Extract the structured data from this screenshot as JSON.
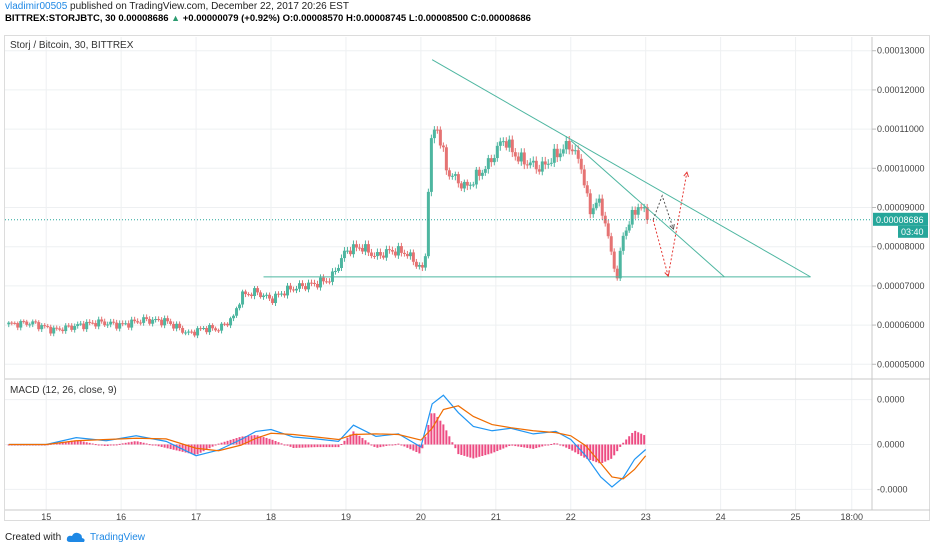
{
  "header": {
    "username": "vladimir00505",
    "published": "published on TradingView.com, December 22, 2017 20:26 EST",
    "symbol": "BITTREX:STORJBTC, 30",
    "price": "0.00008686",
    "change": "+0.00000079 (+0.92%)",
    "o_label": "O:",
    "o": "0.00008570",
    "h_label": "H:",
    "h": "0.00008745",
    "l_label": "L:",
    "l": "0.00008500",
    "c_label": "C:",
    "c": "0.00008686"
  },
  "footer": {
    "created": "Created with",
    "brand": "TradingView"
  },
  "chart_data": [
    {
      "type": "candlestick",
      "title": "Storj / Bitcoin, 30, BITTREX",
      "y_ticks": [
        "0.00013000",
        "0.00012000",
        "0.00011000",
        "0.00010000",
        "0.00009000",
        "0.00008000",
        "0.00007000",
        "0.00006000",
        "0.00005000"
      ],
      "y_tick_values": [
        0.00013,
        0.00012,
        0.00011,
        0.0001,
        9e-05,
        8e-05,
        7e-05,
        6e-05,
        5e-05
      ],
      "ylim": [
        4.65e-05,
        0.0001335
      ],
      "x_ticks": [
        "15",
        "16",
        "17",
        "18",
        "19",
        "20",
        "21",
        "22",
        "23",
        "24",
        "25",
        "18:00"
      ],
      "x_tick_values": [
        15,
        16,
        17,
        18,
        19,
        20,
        21,
        22,
        23,
        24,
        25,
        25.75
      ],
      "xlim": [
        14.45,
        26.02
      ],
      "last_price": "0.00008686",
      "last_price_value": 8.686e-05,
      "countdown": "03:40",
      "colors": {
        "up": "#4db6a0",
        "down": "#e57373",
        "trend": "#4db6a0",
        "price_line": "#26a69a",
        "arrow_down": "#e53935",
        "arrow_up": "#e53935"
      },
      "close_path": [
        [
          14.5,
          6.02e-05
        ],
        [
          14.8,
          6.06e-05
        ],
        [
          15.1,
          5.87e-05
        ],
        [
          15.4,
          5.98e-05
        ],
        [
          15.7,
          6.07e-05
        ],
        [
          16.0,
          6e-05
        ],
        [
          16.3,
          6.13e-05
        ],
        [
          16.6,
          6.1e-05
        ],
        [
          16.9,
          5.78e-05
        ],
        [
          17.1,
          5.92e-05
        ],
        [
          17.3,
          5.9e-05
        ],
        [
          17.5,
          6.2e-05
        ],
        [
          17.6,
          6.75e-05
        ],
        [
          17.8,
          6.85e-05
        ],
        [
          18.0,
          6.65e-05
        ],
        [
          18.2,
          6.88e-05
        ],
        [
          18.4,
          6.99e-05
        ],
        [
          18.6,
          7.06e-05
        ],
        [
          18.8,
          7.18e-05
        ],
        [
          19.0,
          7.9e-05
        ],
        [
          19.2,
          8e-05
        ],
        [
          19.4,
          7.75e-05
        ],
        [
          19.6,
          7.9e-05
        ],
        [
          19.8,
          7.85e-05
        ],
        [
          20.0,
          7.45e-05
        ],
        [
          20.05,
          7.35e-05
        ],
        [
          20.12,
          0.000104
        ],
        [
          20.2,
          0.000112
        ],
        [
          20.35,
          9.92e-05
        ],
        [
          20.6,
          9.5e-05
        ],
        [
          20.9,
          0.000101
        ],
        [
          21.1,
          0.0001075
        ],
        [
          21.3,
          0.0001025
        ],
        [
          21.6,
          0.0001
        ],
        [
          21.9,
          0.000105
        ],
        [
          22.0,
          0.000106
        ],
        [
          22.15,
          0.0001
        ],
        [
          22.25,
          8.85e-05
        ],
        [
          22.35,
          9.2e-05
        ],
        [
          22.45,
          8.75e-05
        ],
        [
          22.55,
          7.7e-05
        ],
        [
          22.62,
          7.25e-05
        ],
        [
          22.7,
          8.3e-05
        ],
        [
          22.8,
          8.7e-05
        ],
        [
          22.9,
          9.05e-05
        ],
        [
          23.0,
          8.85e-05
        ],
        [
          23.05,
          8.69e-05
        ]
      ],
      "trend_lines": [
        {
          "from": [
            20.15,
            0.0001277
          ],
          "to": [
            25.2,
            7.23e-05
          ]
        },
        {
          "from": [
            22.0,
            0.0001071
          ],
          "to": [
            24.05,
            7.23e-05
          ]
        },
        {
          "from": [
            17.9,
            7.23e-05
          ],
          "to": [
            25.2,
            7.23e-05
          ]
        }
      ],
      "projection_arrows": [
        {
          "kind": "down",
          "points": [
            [
              23.1,
              8.68e-05
            ],
            [
              23.3,
              7.25e-05
            ]
          ]
        },
        {
          "kind": "up",
          "points": [
            [
              23.3,
              7.25e-05
            ],
            [
              23.55,
              9.9e-05
            ]
          ]
        },
        {
          "kind": "swing",
          "points": [
            [
              23.1,
              8.69e-05
            ],
            [
              23.22,
              9.3e-05
            ],
            [
              23.37,
              8.45e-05
            ]
          ]
        }
      ]
    },
    {
      "type": "line",
      "title": "MACD (12, 26, close, 9)",
      "y_ticks": [
        "0.0000",
        "0.0000",
        "-0.0000"
      ],
      "y_tick_values": [
        7.2e-06,
        0,
        -7.2e-06
      ],
      "ylim": [
        -1.05e-05,
        1.05e-05
      ],
      "colors": {
        "macd": "#2196f3",
        "signal": "#ef6c00",
        "hist": "#e91e63"
      },
      "series": [
        {
          "points": [
            [
              14.5,
              0.0
            ],
            [
              15.0,
              0.0
            ],
            [
              15.4,
              1.1e-06
            ],
            [
              15.8,
              6e-07
            ],
            [
              16.2,
              1.4e-06
            ],
            [
              16.6,
              5e-07
            ],
            [
              17.0,
              -1.8e-06
            ],
            [
              17.3,
              -9e-07
            ],
            [
              17.6,
              8e-07
            ],
            [
              17.8,
              2.1e-06
            ],
            [
              18.0,
              2.4e-06
            ],
            [
              18.3,
              1.2e-06
            ],
            [
              18.6,
              9e-07
            ],
            [
              18.9,
              5e-07
            ],
            [
              19.1,
              3.1e-06
            ],
            [
              19.4,
              1.3e-06
            ],
            [
              19.7,
              1.7e-06
            ],
            [
              20.0,
              -4e-07
            ],
            [
              20.15,
              6.5e-06
            ],
            [
              20.3,
              7.9e-06
            ],
            [
              20.5,
              5.1e-06
            ],
            [
              20.7,
              2.9e-06
            ],
            [
              20.95,
              2.2e-06
            ],
            [
              21.2,
              2.6e-06
            ],
            [
              21.5,
              1.7e-06
            ],
            [
              21.8,
              2.1e-06
            ],
            [
              22.0,
              8e-07
            ],
            [
              22.2,
              -1.8e-06
            ],
            [
              22.4,
              -5.2e-06
            ],
            [
              22.55,
              -6.8e-06
            ],
            [
              22.7,
              -5.3e-06
            ],
            [
              22.85,
              -2.4e-06
            ],
            [
              23.0,
              -8e-07
            ]
          ]
        },
        {
          "points": [
            [
              14.5,
              0.0
            ],
            [
              15.0,
              0.0
            ],
            [
              15.4,
              6e-07
            ],
            [
              15.8,
              8e-07
            ],
            [
              16.2,
              1e-06
            ],
            [
              16.6,
              9e-07
            ],
            [
              17.0,
              -6e-07
            ],
            [
              17.3,
              -1e-06
            ],
            [
              17.6,
              -1e-07
            ],
            [
              17.8,
              1e-06
            ],
            [
              18.0,
              1.8e-06
            ],
            [
              18.3,
              1.6e-06
            ],
            [
              18.6,
              1.2e-06
            ],
            [
              18.9,
              8e-07
            ],
            [
              19.1,
              1.6e-06
            ],
            [
              19.4,
              1.7e-06
            ],
            [
              19.7,
              1.6e-06
            ],
            [
              20.0,
              7e-07
            ],
            [
              20.15,
              2.6e-06
            ],
            [
              20.3,
              5.6e-06
            ],
            [
              20.5,
              6.2e-06
            ],
            [
              20.7,
              4.5e-06
            ],
            [
              20.95,
              3.2e-06
            ],
            [
              21.2,
              2.7e-06
            ],
            [
              21.5,
              2.2e-06
            ],
            [
              21.8,
              1.9e-06
            ],
            [
              22.0,
              1.4e-06
            ],
            [
              22.2,
              -2e-07
            ],
            [
              22.4,
              -3e-06
            ],
            [
              22.55,
              -5.2e-06
            ],
            [
              22.7,
              -5.5e-06
            ],
            [
              22.85,
              -4e-06
            ],
            [
              23.0,
              -1.8e-06
            ]
          ]
        }
      ]
    }
  ]
}
